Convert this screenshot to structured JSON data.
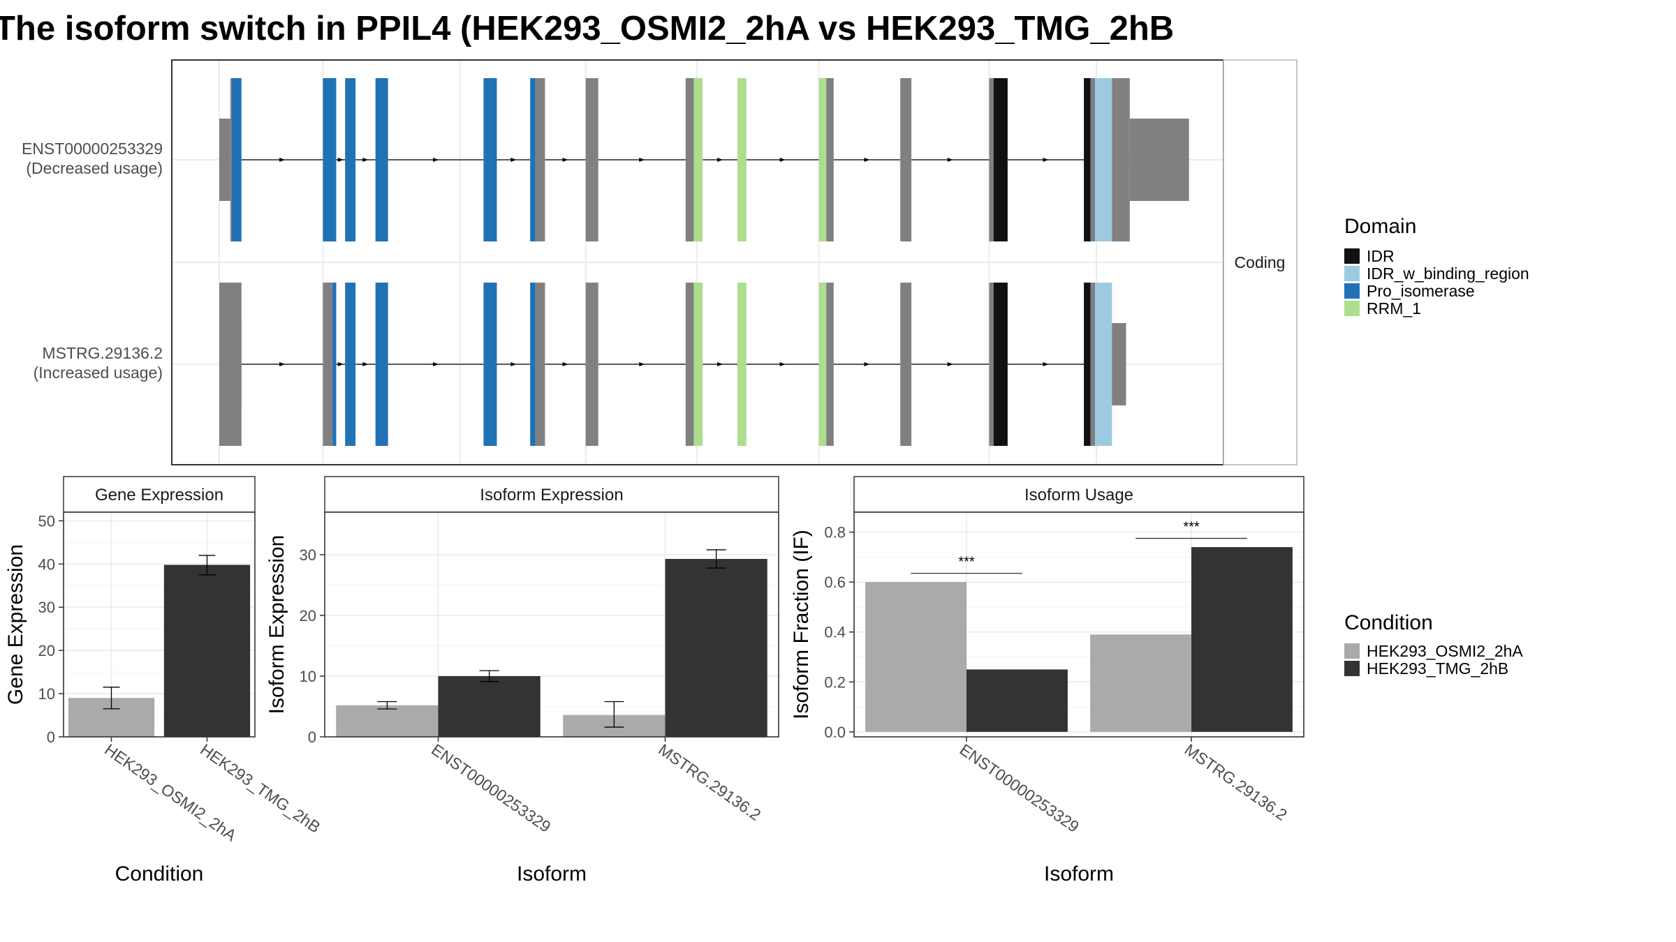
{
  "title": "The isoform switch in PPIL4 (HEK293_OSMI2_2hA vs HEK293_TMG_2hB",
  "colors": {
    "IDR": "#111111",
    "IDR_w_binding_region": "#9ecae1",
    "Pro_isomerase": "#2171b5",
    "RRM_1": "#addd8e",
    "noncoding": "#808080",
    "HEK293_OSMI2_2hA": "#aaaaaa",
    "HEK293_TMG_2hB": "#333333"
  },
  "chart_data": [
    {
      "type": "gene-structure",
      "facet_label": "Coding",
      "isoforms": [
        {
          "id": "ENST00000253329",
          "usage_label": "(Decreased usage)",
          "utr": [
            [
              0,
              15
            ],
            [
              1230,
              1310
            ]
          ],
          "exons": [
            {
              "start": 15,
              "end": 30,
              "segments": [
                [
                  "noncoding",
                  15,
                  17
                ],
                [
                  "Pro_isomerase",
                  17,
                  30
                ]
              ]
            },
            {
              "start": 140,
              "end": 158,
              "segments": [
                [
                  "Pro_isomerase",
                  140,
                  158
                ]
              ]
            },
            {
              "start": 170,
              "end": 184,
              "segments": [
                [
                  "Pro_isomerase",
                  170,
                  184
                ]
              ]
            },
            {
              "start": 211,
              "end": 228,
              "segments": [
                [
                  "Pro_isomerase",
                  211,
                  228
                ]
              ]
            },
            {
              "start": 357,
              "end": 375,
              "segments": [
                [
                  "Pro_isomerase",
                  357,
                  375
                ]
              ]
            },
            {
              "start": 420,
              "end": 440,
              "segments": [
                [
                  "Pro_isomerase",
                  420,
                  427
                ],
                [
                  "noncoding",
                  427,
                  440
                ]
              ]
            },
            {
              "start": 495,
              "end": 512,
              "segments": [
                [
                  "noncoding",
                  495,
                  512
                ]
              ]
            },
            {
              "start": 630,
              "end": 653,
              "segments": [
                [
                  "noncoding",
                  630,
                  641
                ],
                [
                  "RRM_1",
                  641,
                  653
                ]
              ]
            },
            {
              "start": 700,
              "end": 712,
              "segments": [
                [
                  "RRM_1",
                  700,
                  712
                ]
              ]
            },
            {
              "start": 810,
              "end": 830,
              "segments": [
                [
                  "RRM_1",
                  810,
                  820
                ],
                [
                  "noncoding",
                  820,
                  830
                ]
              ]
            },
            {
              "start": 920,
              "end": 935,
              "segments": [
                [
                  "noncoding",
                  920,
                  935
                ]
              ]
            },
            {
              "start": 1040,
              "end": 1065,
              "segments": [
                [
                  "noncoding",
                  1040,
                  1046
                ],
                [
                  "IDR",
                  1046,
                  1065
                ]
              ]
            },
            {
              "start": 1168,
              "end": 1230,
              "segments": [
                [
                  "IDR",
                  1168,
                  1177
                ],
                [
                  "noncoding",
                  1177,
                  1183
                ],
                [
                  "IDR_w_binding_region",
                  1183,
                  1206
                ],
                [
                  "noncoding",
                  1206,
                  1230
                ]
              ]
            }
          ]
        },
        {
          "id": "MSTRG.29136.2",
          "usage_label": "(Increased usage)",
          "utr": [
            [
              0,
              30
            ],
            [
              1205,
              1225
            ]
          ],
          "exons": [
            {
              "start": 0,
              "end": 30,
              "segments": [
                [
                  "noncoding",
                  0,
                  30
                ]
              ]
            },
            {
              "start": 140,
              "end": 158,
              "segments": [
                [
                  "noncoding",
                  140,
                  153
                ],
                [
                  "Pro_isomerase",
                  153,
                  158
                ]
              ]
            },
            {
              "start": 170,
              "end": 184,
              "segments": [
                [
                  "Pro_isomerase",
                  170,
                  184
                ]
              ]
            },
            {
              "start": 211,
              "end": 228,
              "segments": [
                [
                  "Pro_isomerase",
                  211,
                  228
                ]
              ]
            },
            {
              "start": 357,
              "end": 375,
              "segments": [
                [
                  "Pro_isomerase",
                  357,
                  375
                ]
              ]
            },
            {
              "start": 420,
              "end": 440,
              "segments": [
                [
                  "Pro_isomerase",
                  420,
                  427
                ],
                [
                  "noncoding",
                  427,
                  440
                ]
              ]
            },
            {
              "start": 495,
              "end": 512,
              "segments": [
                [
                  "noncoding",
                  495,
                  512
                ]
              ]
            },
            {
              "start": 630,
              "end": 653,
              "segments": [
                [
                  "noncoding",
                  630,
                  641
                ],
                [
                  "RRM_1",
                  641,
                  653
                ]
              ]
            },
            {
              "start": 700,
              "end": 712,
              "segments": [
                [
                  "RRM_1",
                  700,
                  712
                ]
              ]
            },
            {
              "start": 810,
              "end": 830,
              "segments": [
                [
                  "RRM_1",
                  810,
                  820
                ],
                [
                  "noncoding",
                  820,
                  830
                ]
              ]
            },
            {
              "start": 920,
              "end": 935,
              "segments": [
                [
                  "noncoding",
                  920,
                  935
                ]
              ]
            },
            {
              "start": 1040,
              "end": 1065,
              "segments": [
                [
                  "noncoding",
                  1040,
                  1046
                ],
                [
                  "IDR",
                  1046,
                  1065
                ]
              ]
            },
            {
              "start": 1168,
              "end": 1205,
              "segments": [
                [
                  "IDR",
                  1168,
                  1177
                ],
                [
                  "noncoding",
                  1177,
                  1183
                ],
                [
                  "IDR_w_binding_region",
                  1183,
                  1206
                ]
              ]
            }
          ]
        }
      ],
      "legend": {
        "title": "Domain",
        "entries": [
          "IDR",
          "IDR_w_binding_region",
          "Pro_isomerase",
          "RRM_1"
        ]
      }
    },
    {
      "type": "bar",
      "strip_label": "Gene Expression",
      "xlabel": "Condition",
      "ylabel": "Gene Expression",
      "ylim": [
        0,
        52
      ],
      "yticks": [
        0,
        10,
        20,
        30,
        40,
        50
      ],
      "categories": [
        "HEK293_OSMI2_2hA",
        "HEK293_TMG_2hB"
      ],
      "values": [
        9,
        39.8
      ],
      "errors": [
        [
          6.5,
          11.5
        ],
        [
          37.5,
          42
        ]
      ]
    },
    {
      "type": "bar",
      "strip_label": "Isoform Expression",
      "xlabel": "Isoform",
      "ylabel": "Isoform Expression",
      "ylim": [
        0,
        37
      ],
      "yticks": [
        0,
        10,
        20,
        30
      ],
      "categories": [
        "ENST00000253329",
        "MSTRG.29136.2"
      ],
      "series": [
        {
          "name": "HEK293_OSMI2_2hA",
          "values": [
            5.2,
            3.6
          ],
          "errors": [
            [
              4.6,
              5.8
            ],
            [
              1.6,
              5.8
            ]
          ]
        },
        {
          "name": "HEK293_TMG_2hB",
          "values": [
            10,
            29.3
          ],
          "errors": [
            [
              9.1,
              10.9
            ],
            [
              27.8,
              30.8
            ]
          ]
        }
      ]
    },
    {
      "type": "bar",
      "strip_label": "Isoform Usage",
      "xlabel": "Isoform",
      "ylabel": "Isoform Fraction (IF)",
      "ylim": [
        -0.02,
        0.88
      ],
      "yticks": [
        "0.0",
        "0.2",
        "0.4",
        "0.6",
        "0.8"
      ],
      "categories": [
        "ENST00000253329",
        "MSTRG.29136.2"
      ],
      "series": [
        {
          "name": "HEK293_OSMI2_2hA",
          "values": [
            0.6,
            0.39
          ]
        },
        {
          "name": "HEK293_TMG_2hB",
          "values": [
            0.25,
            0.74
          ]
        }
      ],
      "significance": [
        {
          "category": "ENST00000253329",
          "label": "***",
          "y": 0.635
        },
        {
          "category": "MSTRG.29136.2",
          "label": "***",
          "y": 0.775
        }
      ],
      "legend": {
        "title": "Condition",
        "entries": [
          "HEK293_OSMI2_2hA",
          "HEK293_TMG_2hB"
        ]
      }
    }
  ]
}
